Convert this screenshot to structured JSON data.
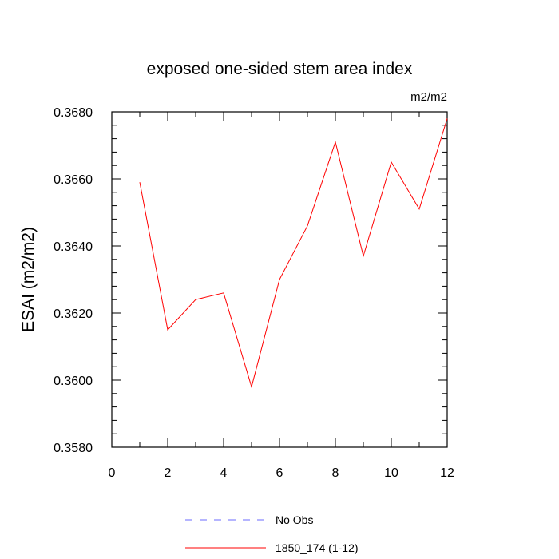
{
  "chart_data": {
    "type": "line",
    "title": "exposed one-sided stem area index",
    "units_label": "m2/m2",
    "xlabel": "",
    "ylabel": "ESAI  (m2/m2)",
    "xlim": [
      0,
      12
    ],
    "ylim": [
      0.358,
      0.368
    ],
    "x_ticks": [
      0,
      2,
      4,
      6,
      8,
      10,
      12
    ],
    "x_tick_labels": [
      "0",
      "2",
      "4",
      "6",
      "8",
      "10",
      "12"
    ],
    "y_ticks": [
      0.358,
      0.36,
      0.362,
      0.364,
      0.366,
      0.368
    ],
    "y_tick_labels": [
      "0.3580",
      "0.3600",
      "0.3620",
      "0.3640",
      "0.3660",
      "0.3680"
    ],
    "grid": false,
    "legend_position": "bottom",
    "series": [
      {
        "name": "1850_174 (1-12)",
        "color": "#ff0000",
        "style": "solid",
        "x": [
          1,
          2,
          3,
          4,
          5,
          6,
          7,
          8,
          9,
          10,
          11,
          12
        ],
        "y": [
          0.3659,
          0.3615,
          0.3624,
          0.3626,
          0.3598,
          0.363,
          0.3646,
          0.3671,
          0.3637,
          0.3665,
          0.3651,
          0.3678
        ]
      }
    ],
    "legend": [
      {
        "label": "No Obs",
        "color": "#6b6bff",
        "style": "dashed"
      },
      {
        "label": "1850_174 (1-12)",
        "color": "#ff0000",
        "style": "solid"
      }
    ]
  }
}
